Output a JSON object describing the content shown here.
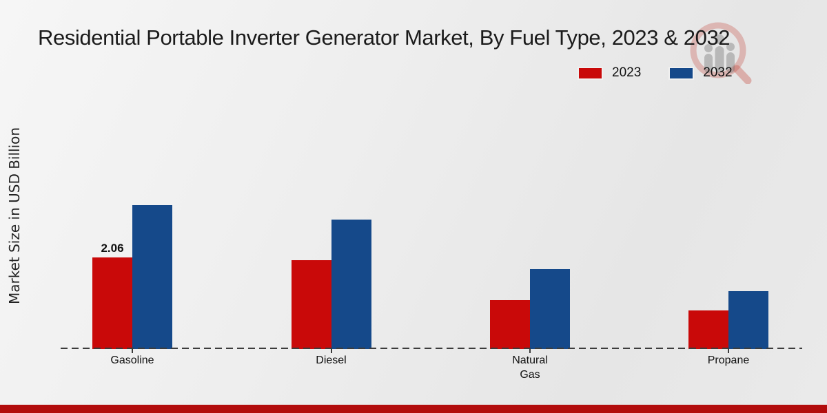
{
  "page": {
    "accent_stripe_color": "#b20c0c"
  },
  "header": {
    "title": "Residential Portable Inverter Generator Market, By Fuel Type, 2023 & 2032"
  },
  "watermark_icon": "magnifier-bar-chart-logo",
  "chart_data": {
    "type": "bar",
    "title": "Residential Portable Inverter Generator Market, By Fuel Type, 2023 & 2032",
    "xlabel": "",
    "ylabel": "Market Size in USD Billion",
    "categories": [
      "Gasoline",
      "Diesel",
      "Natural Gas",
      "Propane"
    ],
    "category_tick_lines": [
      [
        "Gasoline"
      ],
      [
        "Diesel"
      ],
      [
        "Natural",
        "Gas"
      ],
      [
        "Propane"
      ]
    ],
    "series": [
      {
        "name": "2023",
        "color": "#c90909",
        "values": [
          2.06,
          2.0,
          1.11,
          0.87
        ]
      },
      {
        "name": "2032",
        "color": "#15498a",
        "values": [
          3.25,
          2.92,
          1.8,
          1.3
        ]
      }
    ],
    "value_labels": [
      {
        "series_index": 0,
        "category_index": 0,
        "text": "2.06"
      }
    ],
    "legend_position": "top-right",
    "grid": false,
    "baseline_style": "dashed",
    "ylim": [
      0,
      3.5
    ],
    "y_axis_ticks_visible": false
  }
}
